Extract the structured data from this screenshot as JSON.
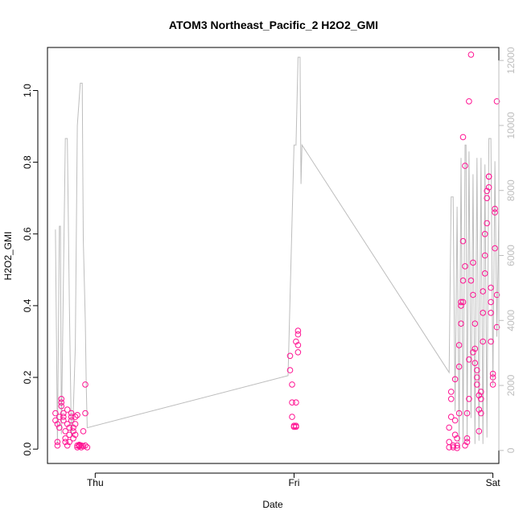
{
  "chart_data": {
    "type": "scatter",
    "title": "ATOM3 Northeast_Pacific_2 H2O2_GMI",
    "xlabel": "Date",
    "ylabel": "H2O2_GMI",
    "x_ticks": [
      "Thu",
      "Fri",
      "Sat"
    ],
    "x_tick_positions_days": [
      1.0,
      2.0,
      3.0
    ],
    "xlim_days": [
      0.76,
      3.03
    ],
    "ylim": [
      -0.04,
      1.12
    ],
    "y_ticks": [
      0.0,
      0.2,
      0.4,
      0.6,
      0.8,
      1.0
    ],
    "y_tick_labels": [
      "0.0",
      "0.2",
      "0.4",
      "0.6",
      "0.8",
      "1.0"
    ],
    "y2lim": [
      -400,
      12400
    ],
    "y2_ticks": [
      0,
      2000,
      4000,
      6000,
      8000,
      10000,
      12000
    ],
    "y2_tick_labels": [
      "0",
      "2000",
      "4000",
      "6000",
      "8000",
      "10000",
      "12000"
    ],
    "grid": false,
    "legend": "none",
    "colors": {
      "points": "#ff1493",
      "line": "#bdbdbd",
      "axes": "#000000",
      "right_axis": "#bdbdbd"
    },
    "series": [
      {
        "marker": "open-circle",
        "axis": "left",
        "points": [
          [
            0.8,
            0.1
          ],
          [
            0.8,
            0.08
          ],
          [
            0.81,
            0.07
          ],
          [
            0.81,
            0.02
          ],
          [
            0.81,
            0.01
          ],
          [
            0.82,
            0.06
          ],
          [
            0.82,
            0.09
          ],
          [
            0.83,
            0.13
          ],
          [
            0.83,
            0.14
          ],
          [
            0.83,
            0.12
          ],
          [
            0.84,
            0.1
          ],
          [
            0.84,
            0.09
          ],
          [
            0.84,
            0.08
          ],
          [
            0.85,
            0.05
          ],
          [
            0.85,
            0.03
          ],
          [
            0.85,
            0.02
          ],
          [
            0.86,
            0.01
          ],
          [
            0.86,
            0.11
          ],
          [
            0.86,
            0.07
          ],
          [
            0.87,
            0.06
          ],
          [
            0.87,
            0.04
          ],
          [
            0.87,
            0.02
          ],
          [
            0.88,
            0.09
          ],
          [
            0.88,
            0.1
          ],
          [
            0.88,
            0.08
          ],
          [
            0.89,
            0.05
          ],
          [
            0.89,
            0.03
          ],
          [
            0.89,
            0.06
          ],
          [
            0.9,
            0.04
          ],
          [
            0.9,
            0.07
          ],
          [
            0.9,
            0.09
          ],
          [
            0.91,
            0.095
          ],
          [
            0.91,
            0.01
          ],
          [
            0.91,
            0.005
          ],
          [
            0.92,
            0.008
          ],
          [
            0.92,
            0.01
          ],
          [
            0.92,
            0.012
          ],
          [
            0.93,
            0.01
          ],
          [
            0.93,
            0.005
          ],
          [
            0.94,
            0.05
          ],
          [
            0.95,
            0.1
          ],
          [
            0.95,
            0.18
          ],
          [
            0.95,
            0.01
          ],
          [
            0.96,
            0.005
          ],
          [
            0.94,
            0.008
          ],
          [
            1.98,
            0.26
          ],
          [
            1.98,
            0.22
          ],
          [
            1.99,
            0.18
          ],
          [
            1.99,
            0.13
          ],
          [
            1.99,
            0.09
          ],
          [
            2.0,
            0.065
          ],
          [
            2.0,
            0.062
          ],
          [
            2.01,
            0.062
          ],
          [
            2.01,
            0.065
          ],
          [
            2.01,
            0.13
          ],
          [
            2.01,
            0.3
          ],
          [
            2.02,
            0.33
          ],
          [
            2.02,
            0.32
          ],
          [
            2.02,
            0.29
          ],
          [
            2.02,
            0.27
          ],
          [
            2.78,
            0.005
          ],
          [
            2.78,
            0.02
          ],
          [
            2.78,
            0.06
          ],
          [
            2.79,
            0.16
          ],
          [
            2.79,
            0.14
          ],
          [
            2.79,
            0.09
          ],
          [
            2.8,
            0.01
          ],
          [
            2.8,
            0.005
          ],
          [
            2.81,
            0.04
          ],
          [
            2.81,
            0.08
          ],
          [
            2.81,
            0.195
          ],
          [
            2.82,
            0.003
          ],
          [
            2.82,
            0.01
          ],
          [
            2.82,
            0.03
          ],
          [
            2.83,
            0.1
          ],
          [
            2.83,
            0.23
          ],
          [
            2.83,
            0.29
          ],
          [
            2.84,
            0.35
          ],
          [
            2.84,
            0.4
          ],
          [
            2.84,
            0.41
          ],
          [
            2.85,
            0.41
          ],
          [
            2.85,
            0.47
          ],
          [
            2.85,
            0.58
          ],
          [
            2.85,
            0.87
          ],
          [
            2.86,
            0.79
          ],
          [
            2.86,
            0.51
          ],
          [
            2.87,
            0.02
          ],
          [
            2.87,
            0.03
          ],
          [
            2.87,
            0.1
          ],
          [
            2.88,
            0.14
          ],
          [
            2.88,
            0.25
          ],
          [
            2.88,
            0.97
          ],
          [
            2.89,
            1.1
          ],
          [
            2.89,
            0.47
          ],
          [
            2.9,
            0.52
          ],
          [
            2.9,
            0.43
          ],
          [
            2.91,
            0.35
          ],
          [
            2.91,
            0.28
          ],
          [
            2.91,
            0.24
          ],
          [
            2.92,
            0.22
          ],
          [
            2.92,
            0.2
          ],
          [
            2.92,
            0.18
          ],
          [
            2.93,
            0.15
          ],
          [
            2.93,
            0.11
          ],
          [
            2.94,
            0.1
          ],
          [
            2.94,
            0.14
          ],
          [
            2.94,
            0.16
          ],
          [
            2.95,
            0.3
          ],
          [
            2.95,
            0.38
          ],
          [
            2.95,
            0.44
          ],
          [
            2.96,
            0.49
          ],
          [
            2.96,
            0.54
          ],
          [
            2.96,
            0.6
          ],
          [
            2.97,
            0.63
          ],
          [
            2.97,
            0.7
          ],
          [
            2.97,
            0.72
          ],
          [
            2.98,
            0.73
          ],
          [
            2.98,
            0.76
          ],
          [
            2.98,
            0.76
          ],
          [
            2.99,
            0.45
          ],
          [
            2.99,
            0.41
          ],
          [
            2.99,
            0.38
          ],
          [
            2.99,
            0.3
          ],
          [
            3.0,
            0.2
          ],
          [
            3.0,
            0.18
          ],
          [
            3.0,
            0.21
          ],
          [
            3.01,
            0.67
          ],
          [
            3.01,
            0.66
          ],
          [
            3.01,
            0.56
          ],
          [
            3.02,
            0.97
          ],
          [
            3.02,
            0.43
          ],
          [
            3.02,
            0.34
          ],
          [
            2.9,
            0.27
          ],
          [
            2.93,
            0.05
          ],
          [
            2.86,
            0.01
          ]
        ]
      },
      {
        "marker": "line",
        "axis": "right",
        "points": [
          [
            0.8,
            6800
          ],
          [
            0.81,
            200
          ],
          [
            0.82,
            6900
          ],
          [
            0.825,
            6900
          ],
          [
            0.83,
            500
          ],
          [
            0.84,
            5200
          ],
          [
            0.85,
            9600
          ],
          [
            0.86,
            9600
          ],
          [
            0.87,
            4500
          ],
          [
            0.88,
            400
          ],
          [
            0.89,
            1200
          ],
          [
            0.9,
            3200
          ],
          [
            0.91,
            10000
          ],
          [
            0.925,
            11300
          ],
          [
            0.935,
            11300
          ],
          [
            0.94,
            6500
          ],
          [
            0.95,
            4000
          ],
          [
            0.955,
            2000
          ],
          [
            0.96,
            700
          ],
          [
            1.97,
            2300
          ],
          [
            2.0,
            9400
          ],
          [
            2.01,
            9400
          ],
          [
            2.02,
            12100
          ],
          [
            2.03,
            12100
          ],
          [
            2.035,
            8200
          ],
          [
            2.04,
            9400
          ],
          [
            2.78,
            2400
          ],
          [
            2.79,
            7800
          ],
          [
            2.8,
            7800
          ],
          [
            2.81,
            1200
          ],
          [
            2.82,
            7500
          ],
          [
            2.83,
            100
          ],
          [
            2.84,
            9000
          ],
          [
            2.85,
            200
          ],
          [
            2.86,
            9400
          ],
          [
            2.865,
            9400
          ],
          [
            2.87,
            300
          ],
          [
            2.88,
            9200
          ],
          [
            2.89,
            1000
          ],
          [
            2.9,
            8500
          ],
          [
            2.91,
            200
          ],
          [
            2.92,
            9000
          ],
          [
            2.93,
            300
          ],
          [
            2.94,
            9000
          ],
          [
            2.95,
            200
          ],
          [
            2.96,
            8800
          ],
          [
            2.97,
            400
          ],
          [
            2.98,
            9600
          ],
          [
            2.99,
            9600
          ],
          [
            3.0,
            2000
          ],
          [
            3.01,
            8900
          ],
          [
            3.02,
            3500
          ],
          [
            3.03,
            7500
          ]
        ]
      }
    ]
  }
}
